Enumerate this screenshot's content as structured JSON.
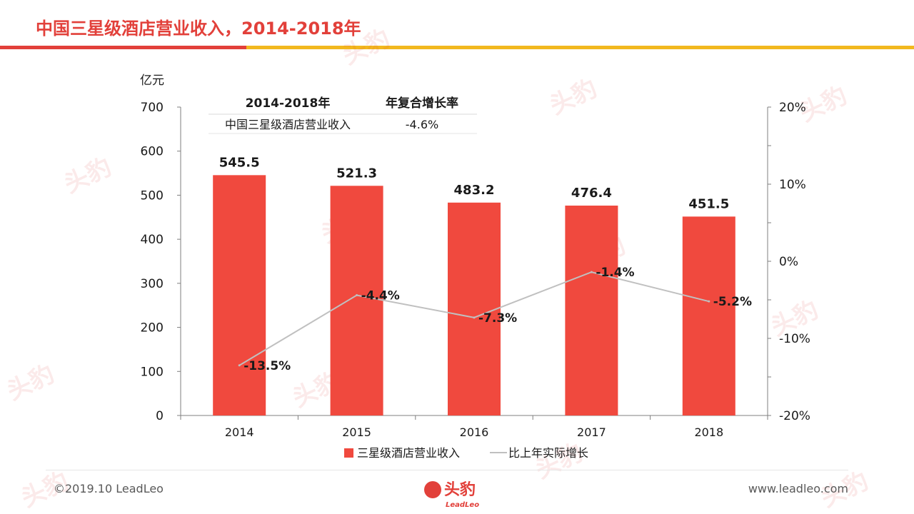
{
  "page": {
    "title": "中国三星级酒店营业收入，2014-2018年",
    "footer_copyright": "©2019.10 LeadLeo",
    "footer_url": "www.leadleo.com",
    "logo_text": "头豹",
    "logo_subtext": "LeadLeo"
  },
  "colors": {
    "accent_red": "#e2403a",
    "accent_yellow": "#f2b81e",
    "bar": "#f0493e",
    "line": "#c0c0c0"
  },
  "summary_table": {
    "headers": [
      "2014-2018年",
      "年复合增长率"
    ],
    "rows": [
      [
        "中国三星级酒店营业收入",
        "-4.6%"
      ]
    ]
  },
  "chart_data": {
    "type": "bar",
    "categories": [
      "2014",
      "2015",
      "2016",
      "2017",
      "2018"
    ],
    "ylabel": "亿元",
    "ylim": [
      0,
      700
    ],
    "yticks": [
      0,
      100,
      200,
      300,
      400,
      500,
      600,
      700
    ],
    "y2lim": [
      -20,
      20
    ],
    "y2ticks": [
      "-20%",
      "-10%",
      "0%",
      "10%",
      "20%"
    ],
    "series": [
      {
        "name": "三星级酒店营业收入",
        "type": "bar",
        "axis": "left",
        "values": [
          545.5,
          521.3,
          483.2,
          476.4,
          451.5
        ],
        "labels": [
          "545.5",
          "521.3",
          "483.2",
          "476.4",
          "451.5"
        ]
      },
      {
        "name": "比上年实际增长",
        "type": "line",
        "axis": "right",
        "values": [
          -13.5,
          -4.4,
          -7.3,
          -1.4,
          -5.2
        ],
        "labels": [
          "-13.5%",
          "-4.4%",
          "-7.3%",
          "-1.4%",
          "-5.2%"
        ]
      }
    ],
    "legend_position": "bottom",
    "grid": false
  }
}
